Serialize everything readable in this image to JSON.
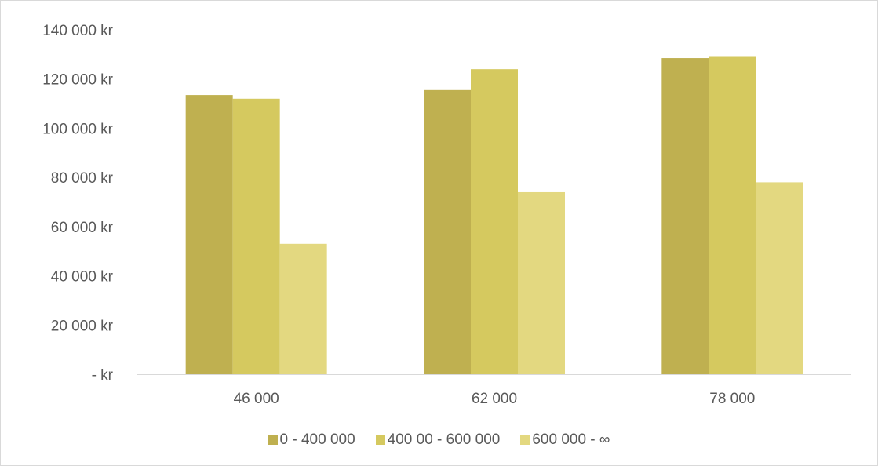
{
  "chart_data": {
    "type": "bar",
    "categories": [
      "46 000",
      "62 000",
      "78 000"
    ],
    "series": [
      {
        "name": "0 - 400 000",
        "values": [
          113500,
          115500,
          128500
        ],
        "color": "#bfb050"
      },
      {
        "name": "400 00 - 600 000",
        "values": [
          112000,
          124000,
          129000
        ],
        "color": "#d5c95f"
      },
      {
        "name": "600 000 - ∞",
        "values": [
          53000,
          74000,
          78000
        ],
        "color": "#e3d880"
      }
    ],
    "y_ticks": [
      {
        "value": 0,
        "label": "-   kr"
      },
      {
        "value": 20000,
        "label": "20 000 kr"
      },
      {
        "value": 40000,
        "label": "40 000 kr"
      },
      {
        "value": 60000,
        "label": "60 000 kr"
      },
      {
        "value": 80000,
        "label": "80 000 kr"
      },
      {
        "value": 100000,
        "label": "100 000 kr"
      },
      {
        "value": 120000,
        "label": "120 000 kr"
      },
      {
        "value": 140000,
        "label": "140 000 kr"
      }
    ],
    "ylim": [
      0,
      140000
    ],
    "grid": false,
    "legend_position": "bottom",
    "axis_color": "#d9d9d9"
  }
}
